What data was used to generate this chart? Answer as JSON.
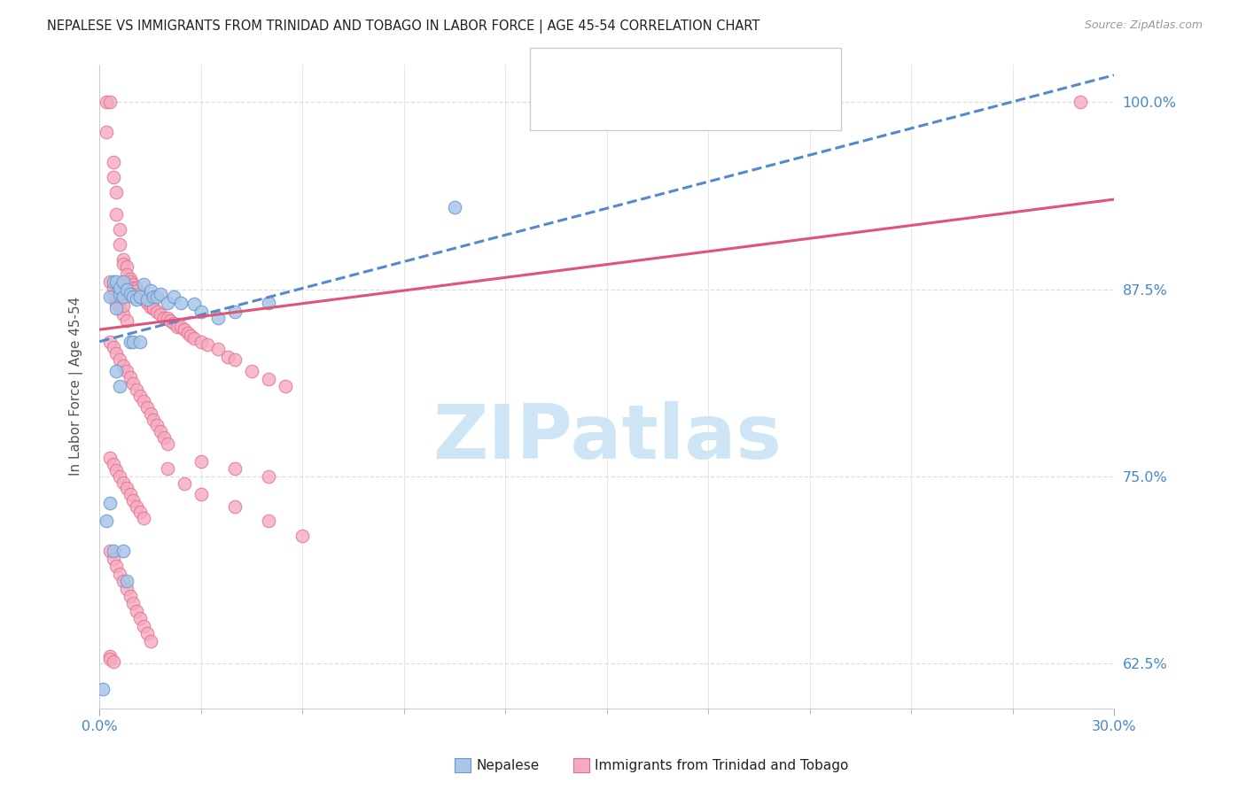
{
  "title": "NEPALESE VS IMMIGRANTS FROM TRINIDAD AND TOBAGO IN LABOR FORCE | AGE 45-54 CORRELATION CHART",
  "source": "Source: ZipAtlas.com",
  "ylabel": "In Labor Force | Age 45-54",
  "xlim": [
    0.0,
    0.3
  ],
  "ylim": [
    0.595,
    1.025
  ],
  "yticks": [
    0.625,
    0.75,
    0.875,
    1.0
  ],
  "yticklabels": [
    "62.5%",
    "75.0%",
    "87.5%",
    "100.0%"
  ],
  "xtick_major": [
    0.0,
    0.3
  ],
  "xticklabels": [
    "0.0%",
    "30.0%"
  ],
  "nepalese_color": "#aac5e8",
  "tt_color": "#f5aabe",
  "nepalese_edge": "#6699cc",
  "tt_edge": "#e07090",
  "nepalese_line_color": "#5588cc",
  "tt_line_color": "#e05575",
  "axis_color": "#4488cc",
  "grid_color": "#dddddd",
  "watermark": "ZIPatlas",
  "watermark_color": "#cde5f5",
  "nep_line_x0": 0.0,
  "nep_line_y0": 0.84,
  "nep_line_x1": 0.3,
  "nep_line_y1": 1.018,
  "tt_line_x0": 0.0,
  "tt_line_y0": 0.848,
  "tt_line_x1": 0.3,
  "tt_line_y1": 0.935,
  "nepalese_scatter_x": [
    0.001,
    0.002,
    0.003,
    0.004,
    0.005,
    0.005,
    0.006,
    0.006,
    0.007,
    0.007,
    0.008,
    0.009,
    0.01,
    0.011,
    0.012,
    0.013,
    0.014,
    0.015,
    0.016,
    0.017,
    0.018,
    0.02,
    0.022,
    0.024,
    0.028,
    0.03,
    0.035,
    0.04,
    0.05,
    0.003,
    0.004,
    0.005,
    0.006,
    0.007,
    0.008,
    0.009,
    0.01,
    0.012,
    0.105
  ],
  "nepalese_scatter_y": [
    0.608,
    0.72,
    0.87,
    0.88,
    0.862,
    0.88,
    0.872,
    0.876,
    0.87,
    0.88,
    0.875,
    0.872,
    0.87,
    0.868,
    0.87,
    0.878,
    0.868,
    0.874,
    0.87,
    0.87,
    0.872,
    0.866,
    0.87,
    0.866,
    0.865,
    0.86,
    0.856,
    0.86,
    0.866,
    0.732,
    0.7,
    0.82,
    0.81,
    0.7,
    0.68,
    0.84,
    0.84,
    0.84,
    0.93
  ],
  "tt_scatter_x": [
    0.002,
    0.002,
    0.003,
    0.004,
    0.004,
    0.005,
    0.005,
    0.006,
    0.006,
    0.007,
    0.007,
    0.008,
    0.008,
    0.009,
    0.009,
    0.01,
    0.01,
    0.011,
    0.011,
    0.012,
    0.012,
    0.013,
    0.013,
    0.014,
    0.015,
    0.015,
    0.016,
    0.016,
    0.017,
    0.018,
    0.019,
    0.02,
    0.021,
    0.022,
    0.023,
    0.024,
    0.025,
    0.026,
    0.027,
    0.028,
    0.03,
    0.032,
    0.035,
    0.038,
    0.04,
    0.045,
    0.05,
    0.055,
    0.003,
    0.004,
    0.005,
    0.006,
    0.007,
    0.008,
    0.009,
    0.01,
    0.011,
    0.012,
    0.013,
    0.014,
    0.015,
    0.016,
    0.017,
    0.018,
    0.019,
    0.02,
    0.003,
    0.004,
    0.005,
    0.006,
    0.007,
    0.008,
    0.009,
    0.01,
    0.011,
    0.012,
    0.013,
    0.02,
    0.025,
    0.03,
    0.04,
    0.05,
    0.06,
    0.003,
    0.004,
    0.005,
    0.006,
    0.007,
    0.008,
    0.009,
    0.01,
    0.011,
    0.012,
    0.013,
    0.014,
    0.015,
    0.03,
    0.04,
    0.05,
    0.004,
    0.005,
    0.006,
    0.007,
    0.008,
    0.003,
    0.004,
    0.005,
    0.006,
    0.007,
    0.003,
    0.003,
    0.004,
    0.29
  ],
  "tt_scatter_y": [
    1.0,
    0.98,
    1.0,
    0.96,
    0.95,
    0.94,
    0.925,
    0.915,
    0.905,
    0.895,
    0.892,
    0.89,
    0.885,
    0.882,
    0.88,
    0.878,
    0.876,
    0.876,
    0.874,
    0.872,
    0.87,
    0.87,
    0.868,
    0.866,
    0.865,
    0.863,
    0.862,
    0.862,
    0.86,
    0.858,
    0.856,
    0.856,
    0.854,
    0.852,
    0.85,
    0.85,
    0.848,
    0.846,
    0.844,
    0.842,
    0.84,
    0.838,
    0.835,
    0.83,
    0.828,
    0.82,
    0.815,
    0.81,
    0.84,
    0.836,
    0.832,
    0.828,
    0.824,
    0.82,
    0.816,
    0.812,
    0.808,
    0.804,
    0.8,
    0.796,
    0.792,
    0.788,
    0.784,
    0.78,
    0.776,
    0.772,
    0.762,
    0.758,
    0.754,
    0.75,
    0.746,
    0.742,
    0.738,
    0.734,
    0.73,
    0.726,
    0.722,
    0.755,
    0.745,
    0.738,
    0.73,
    0.72,
    0.71,
    0.7,
    0.695,
    0.69,
    0.685,
    0.68,
    0.675,
    0.67,
    0.665,
    0.66,
    0.655,
    0.65,
    0.645,
    0.64,
    0.76,
    0.755,
    0.75,
    0.87,
    0.865,
    0.862,
    0.858,
    0.854,
    0.88,
    0.876,
    0.872,
    0.868,
    0.864,
    0.63,
    0.628,
    0.626,
    1.0
  ]
}
